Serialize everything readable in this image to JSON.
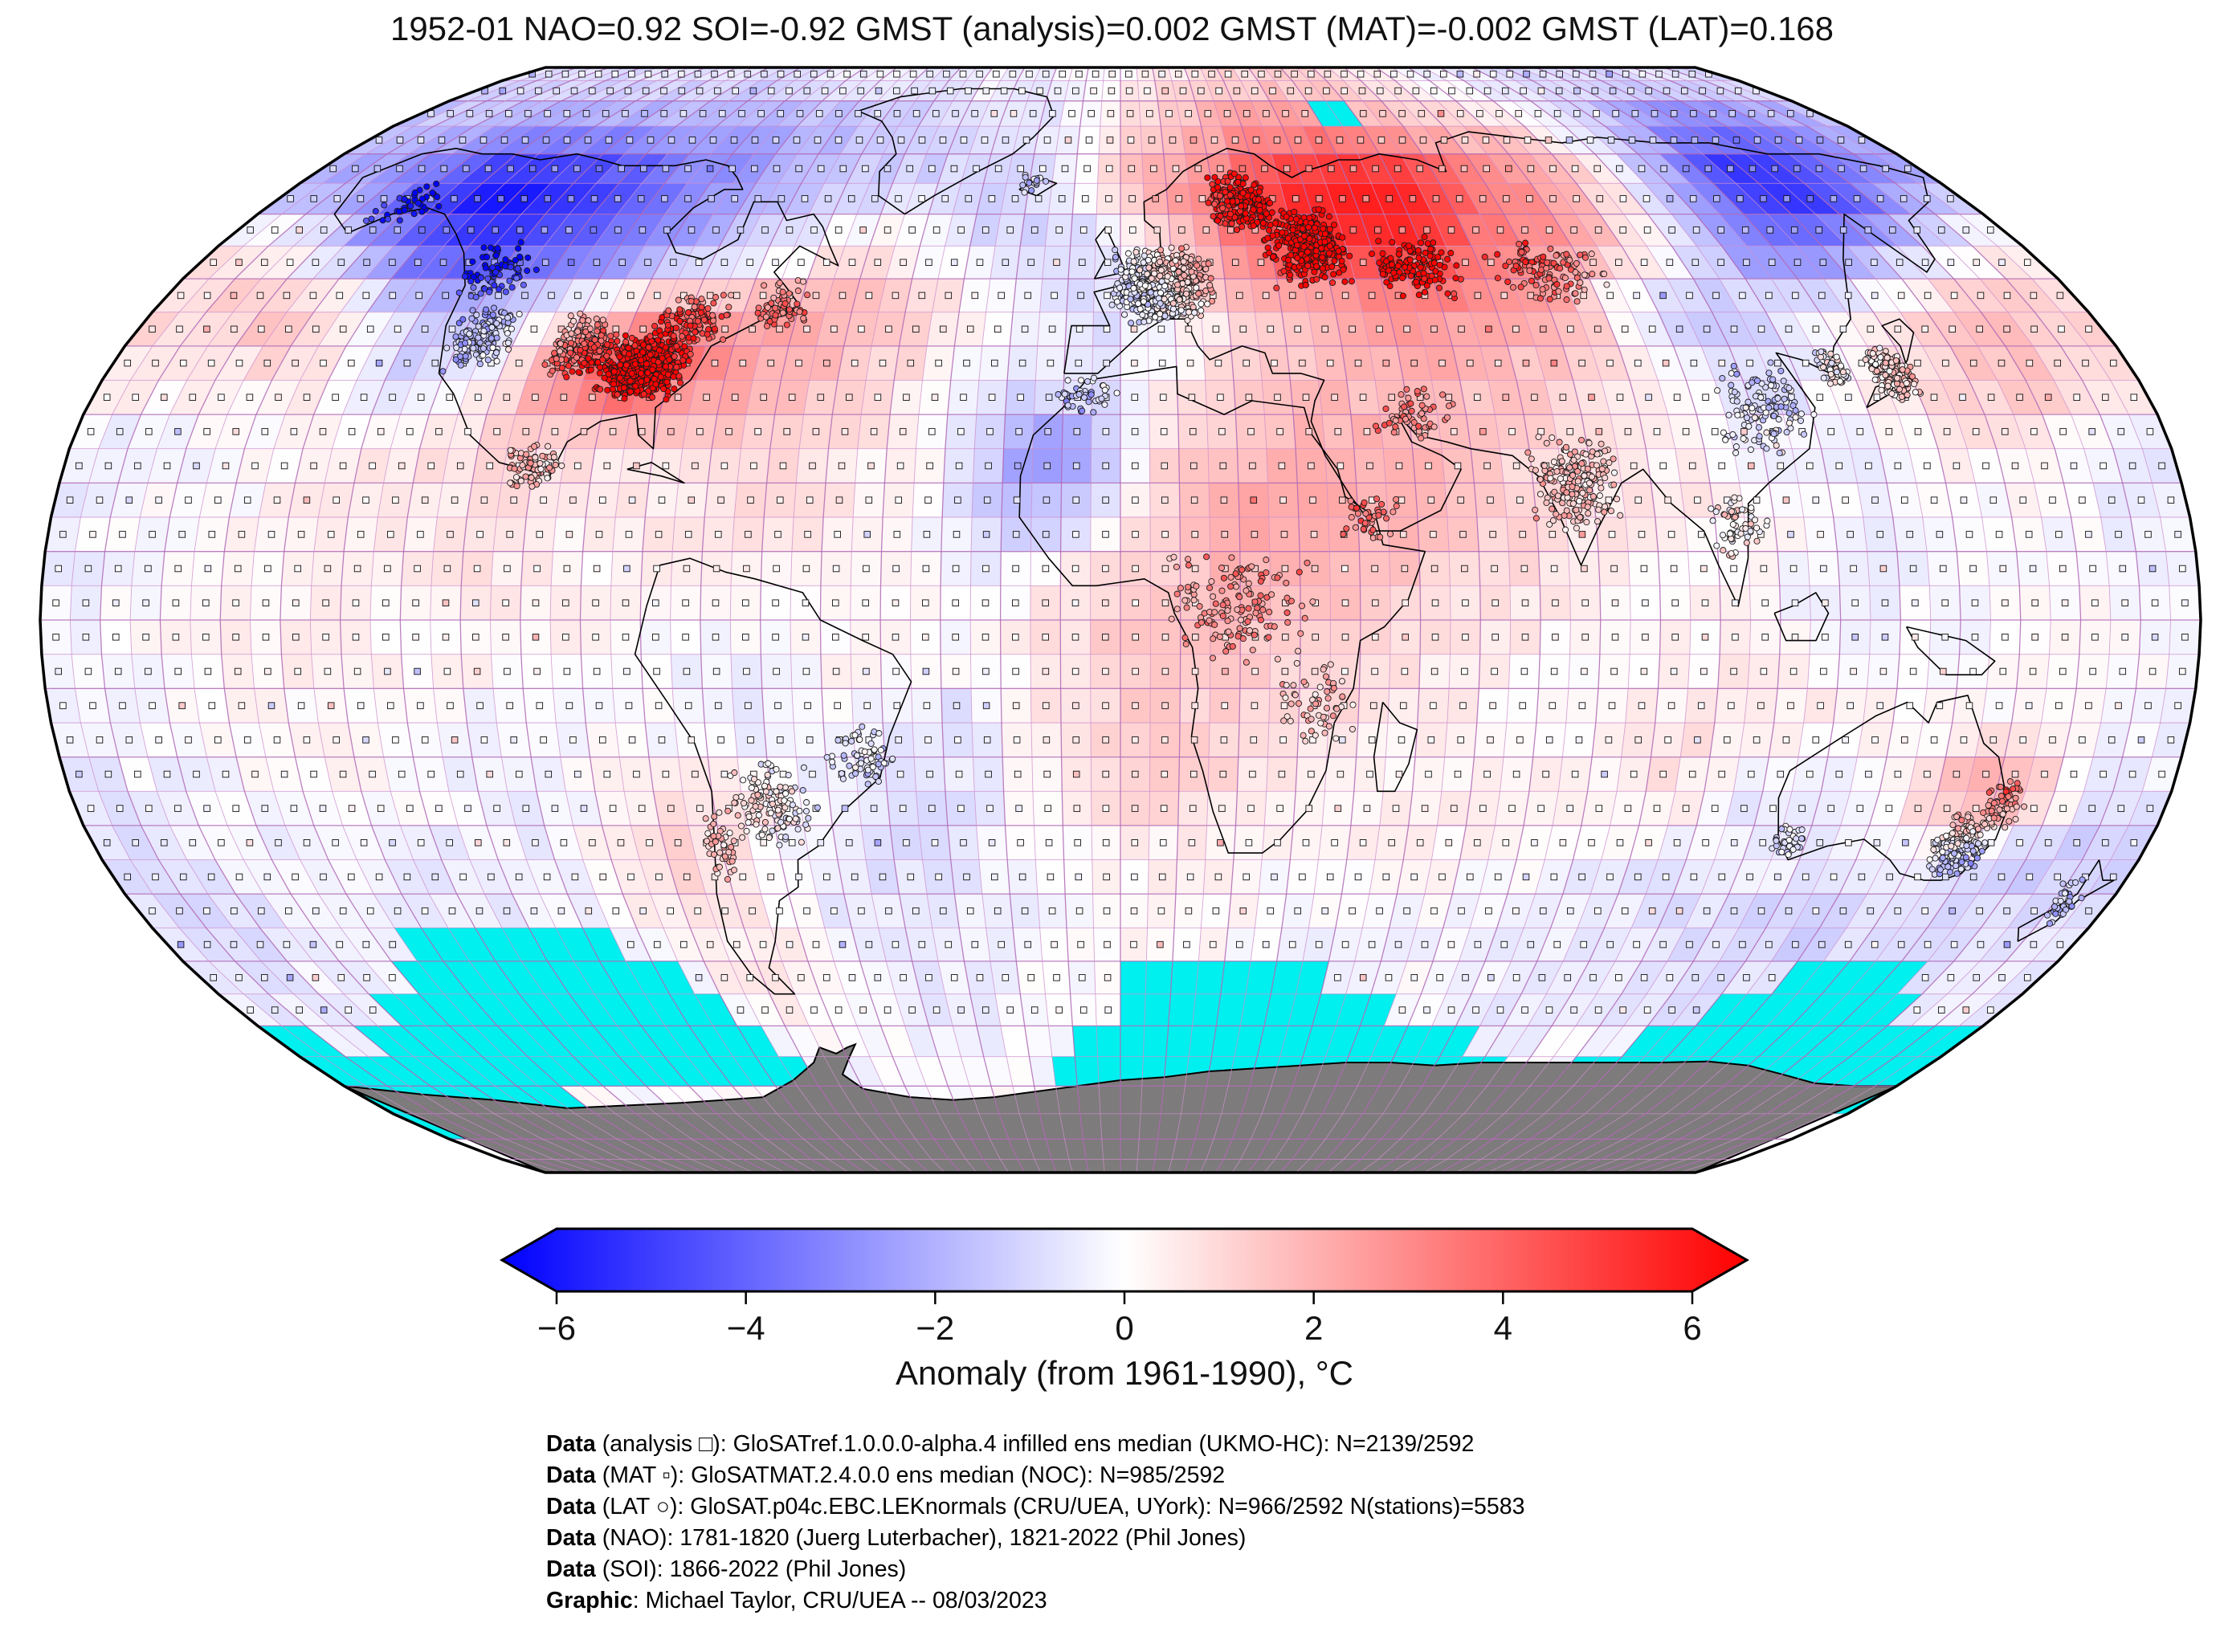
{
  "title": "1952-01 NAO=0.92 SOI=-0.92 GMST (analysis)=0.002 GMST (MAT)=-0.002 GMST (LAT)=0.168",
  "colorbar": {
    "label": "Anomaly (from 1961-1990), °C",
    "min": -6,
    "max": 6,
    "ticks": [
      {
        "v": -6,
        "label": "−6"
      },
      {
        "v": -4,
        "label": "−4"
      },
      {
        "v": -2,
        "label": "−2"
      },
      {
        "v": 0,
        "label": "0"
      },
      {
        "v": 2,
        "label": "2"
      },
      {
        "v": 4,
        "label": "4"
      },
      {
        "v": 6,
        "label": "6"
      }
    ],
    "left_color": "#0000ff",
    "mid_color": "#ffffff",
    "right_color": "#ff0000"
  },
  "credits": {
    "lines": [
      {
        "prefix": "Data",
        "text": " (analysis □): GloSATref.1.0.0.0-alpha.4 infilled ens median (UKMO-HC): N=2139/2592"
      },
      {
        "prefix": "Data",
        "text": " (MAT ▫): GloSATMAT.2.4.0.0 ens median (NOC): N=985/2592"
      },
      {
        "prefix": "Data",
        "text": " (LAT ○): GloSAT.p04c.EBC.LEKnormals (CRU/UEA, UYork): N=966/2592 N(stations)=5583"
      },
      {
        "prefix": "Data",
        "text": " (NAO): 1781-1820 (Juerg Luterbacher), 1821-2022 (Phil Jones)"
      },
      {
        "prefix": "Data",
        "text": " (SOI): 1866-2022 (Phil Jones)"
      },
      {
        "prefix": "Graphic",
        "text": ": Michael Taylor, CRU/UEA -- 08/03/2023"
      }
    ]
  },
  "chart_data": {
    "type": "heatmap",
    "projection": "robinson",
    "date": "1952-01",
    "indices": {
      "NAO": 0.92,
      "SOI": -0.92,
      "GMST_analysis": 0.002,
      "GMST_MAT": -0.002,
      "GMST_LAT": 0.168
    },
    "counts": {
      "analysis": "2139/2592",
      "mat": "985/2592",
      "lat": "966/2592",
      "stations": 5583
    },
    "anomaly_range_c": [
      -6,
      6
    ],
    "baseline": "1961-1990",
    "graticule_deg": 5,
    "colors": {
      "no_data": "#00efef",
      "antarctica": "#7d7b7b",
      "graticule": "#cd8fcd",
      "graticule_major": "#b06ab6",
      "coastline": "#000000",
      "outline": "#000000"
    },
    "grid": {
      "lat_step": 10,
      "lon_step": 10,
      "lat_start": 90,
      "lon_start": -180,
      "values": [
        [
          -0.8,
          -0.8,
          -0.8,
          -0.8,
          -0.8,
          -0.8,
          -0.8,
          -0.8,
          -0.8,
          -0.5,
          -0.5,
          -0.5,
          -0.5,
          -0.3,
          -0.2,
          -0.2,
          -0.2,
          0,
          0.3,
          0.5,
          0.8,
          1,
          1,
          1,
          0.8,
          0.5,
          0,
          -0.3,
          -0.5,
          -0.5,
          -0.8,
          -0.8,
          -0.8,
          -0.8,
          -0.8,
          -0.8
        ],
        [
          -1.5,
          -1.5,
          -1.8,
          -2,
          -2,
          -2,
          -2,
          -2,
          -2,
          -2,
          -1.8,
          -1.5,
          -1.2,
          -1.2,
          -1,
          -0.8,
          -0.5,
          0.3,
          1.2,
          1.5,
          2,
          2.5,
          2.5,
          2,
          1.8,
          1.5,
          1.2,
          0.8,
          0,
          -1,
          -1.5,
          -2.5,
          -3,
          -3,
          -2.5,
          -2
        ],
        [
          -2,
          -2.5,
          -3.5,
          -5,
          -5.5,
          -5.5,
          -4.5,
          -4,
          -3,
          -2.5,
          -1.8,
          -1.5,
          -1.2,
          -1,
          -0.8,
          -1,
          -0.5,
          0.5,
          2,
          2.5,
          3.5,
          4.5,
          5.5,
          5.5,
          5,
          3.5,
          3,
          2,
          1,
          -1,
          -2.5,
          -5,
          -5.5,
          -4.5,
          -3,
          -2
        ],
        [
          0.5,
          0.3,
          -1.5,
          -3,
          -4.5,
          -4.5,
          -4,
          -3.5,
          -3,
          -2,
          -1.2,
          -0.5,
          0.3,
          0.3,
          -0.5,
          -0.8,
          -1,
          -0.8,
          0.3,
          1.5,
          3.5,
          4.5,
          5,
          5,
          4,
          3,
          2.5,
          1.5,
          0.5,
          -1,
          -3,
          -3.5,
          -2.5,
          -1.5,
          -0.5,
          0.3
        ],
        [
          1,
          1.2,
          1.5,
          1,
          -0.8,
          -1.5,
          -1,
          0,
          1.5,
          2.5,
          2.2,
          2,
          1.8,
          1.5,
          1,
          0.3,
          -0.5,
          -0.8,
          -0.5,
          0.5,
          1.2,
          1.8,
          2,
          2.5,
          2.5,
          2,
          1.5,
          -0.5,
          -1.5,
          -1,
          -0.5,
          0,
          0.8,
          1.5,
          1.5,
          1.2
        ],
        [
          0.5,
          0.3,
          0.5,
          0.8,
          -0.3,
          -1,
          -0.5,
          1.5,
          3.5,
          4.5,
          3,
          2,
          1.5,
          1,
          0.5,
          -0.3,
          -0.5,
          -0.5,
          0,
          0.5,
          1,
          1.5,
          1.5,
          1.8,
          1.5,
          1.2,
          0.8,
          0.5,
          -0.5,
          -0.8,
          0,
          0.5,
          1,
          1.5,
          1.2,
          0.8
        ],
        [
          -0.5,
          -0.3,
          -0.3,
          0,
          0.3,
          0.5,
          0.8,
          1,
          0.8,
          0.5,
          0.8,
          1,
          0.8,
          0.5,
          0.3,
          -1,
          -2.5,
          -2,
          0.5,
          1.5,
          1.5,
          1.8,
          2,
          1.5,
          1,
          0.8,
          0.5,
          0.3,
          0,
          -0.3,
          -0.3,
          0,
          0.3,
          0.3,
          -0.3,
          -0.5
        ],
        [
          -0.3,
          0,
          0,
          0.2,
          0.3,
          0.5,
          0.5,
          0.8,
          0.5,
          0.3,
          0.5,
          0.8,
          0.5,
          0.3,
          0,
          -0.8,
          -1.5,
          -0.8,
          0.8,
          1.8,
          2,
          2.2,
          1.8,
          1.5,
          1.2,
          0.8,
          0.5,
          0.5,
          0.3,
          0,
          -0.3,
          -0.3,
          0,
          0,
          -0.3,
          -0.3
        ],
        [
          -0.3,
          -0.2,
          0,
          0.2,
          0.3,
          0.3,
          0.3,
          0.5,
          0.3,
          0.2,
          0.3,
          0.5,
          0.3,
          0.2,
          0,
          -0.3,
          0.3,
          0.8,
          1.2,
          1.5,
          1.8,
          1.5,
          1.2,
          1,
          0.8,
          0.5,
          0.3,
          0.3,
          0,
          -0.2,
          -0.3,
          -0.2,
          0,
          0.2,
          0,
          -0.2
        ],
        [
          -0.2,
          0,
          0.2,
          0.3,
          0.3,
          0.2,
          0.2,
          0.3,
          0.2,
          0,
          -0.2,
          -0.3,
          0,
          0.3,
          0.2,
          0,
          0.5,
          1,
          1.5,
          1.5,
          1.2,
          1,
          0.8,
          0.5,
          0.3,
          0.2,
          0.2,
          0.3,
          0.2,
          0,
          -0.2,
          -0.2,
          0,
          0.2,
          0.2,
          0
        ],
        [
          -0.3,
          -0.2,
          0,
          0.2,
          0.2,
          0,
          -0.2,
          -0.3,
          -0.2,
          0,
          -0.3,
          -0.5,
          -0.5,
          -0.3,
          -0.5,
          -0.8,
          0.3,
          0.8,
          1.2,
          1,
          0.8,
          0.8,
          0.5,
          0.3,
          0.2,
          0,
          0.2,
          0.5,
          0.8,
          0.5,
          0.3,
          0.2,
          0,
          -0.2,
          -0.2,
          -0.3
        ],
        [
          -0.5,
          -0.3,
          -0.2,
          0,
          0.2,
          0,
          -0.2,
          -0.3,
          -0.3,
          0.3,
          0.8,
          0.5,
          0,
          -0.5,
          -0.8,
          -0.5,
          0.3,
          0.8,
          1,
          0.8,
          0.5,
          0.3,
          0.3,
          0.5,
          0.3,
          0.2,
          0.3,
          0.8,
          -0.3,
          -0.5,
          -0.5,
          0.5,
          2.5,
          2,
          -0.3,
          -0.5
        ],
        [
          -0.8,
          -0.5,
          -0.3,
          -0.3,
          -0.2,
          -0.3,
          -0.5,
          -0.5,
          0,
          0.8,
          1,
          0.5,
          -0.3,
          -0.8,
          -0.8,
          -0.5,
          -0.3,
          0,
          0.3,
          0.3,
          0.2,
          0,
          0.2,
          0.3,
          0.2,
          0,
          -0.3,
          -0.5,
          -0.5,
          -0.3,
          -0.3,
          0,
          -0.8,
          -1.2,
          -1.2,
          -1
        ],
        [
          -0.8,
          -0.8,
          -0.5,
          -0.5,
          -0.5,
          -0.5,
          -0.5,
          -0.3,
          -0.3,
          0.3,
          0.5,
          0.3,
          -0.3,
          -0.5,
          -0.5,
          -0.3,
          -0.2,
          0,
          0.2,
          0.2,
          0,
          -0.2,
          -0.3,
          -0.3,
          -0.2,
          -0.3,
          -0.5,
          -0.5,
          -0.8,
          -1,
          -1.2,
          -1,
          -0.8,
          -0.8,
          -0.8,
          -0.8
        ],
        [
          -0.5,
          -0.5,
          -0.3,
          -0.2,
          -0.2,
          -0.2,
          -0.2,
          -0.2,
          -0.2,
          -0.3,
          0.3,
          0.5,
          0.3,
          -0.3,
          -0.5,
          -0.3,
          -0.2,
          0,
          0.2,
          0,
          -0.2,
          -0.3,
          -0.2,
          0,
          -0.3,
          -0.5,
          -0.5,
          -0.3,
          -0.5,
          -0.8,
          -0.5,
          -0.5,
          -0.5,
          -0.5,
          -0.5,
          -0.5
        ],
        [
          -0.2,
          -0.2,
          -0.2,
          -0.2,
          -0.2,
          -0.2,
          -0.2,
          -0.2,
          -0.2,
          -0.2,
          -0.2,
          -0.2,
          -0.2,
          -0.2,
          -0.2,
          -0.2,
          -0.2,
          -0.2,
          -0.2,
          -0.2,
          -0.2,
          -0.2,
          -0.2,
          -0.2,
          -0.2,
          -0.2,
          -0.2,
          -0.2,
          -0.2,
          -0.2,
          -0.2,
          -0.2,
          -0.2,
          -0.2,
          -0.2,
          -0.2
        ],
        [
          0,
          0,
          0,
          0,
          0,
          0,
          0,
          0,
          0,
          0,
          0,
          0,
          0,
          0,
          0,
          0,
          0,
          0,
          0,
          0,
          0,
          0,
          0,
          0,
          0,
          0,
          0,
          0,
          0,
          0,
          0,
          0,
          0,
          0,
          0,
          0
        ],
        [
          0,
          0,
          0,
          0,
          0,
          0,
          0,
          0,
          0,
          0,
          0,
          0,
          0,
          0,
          0,
          0,
          0,
          0,
          0,
          0,
          0,
          0,
          0,
          0,
          0,
          0,
          0,
          0,
          0,
          0,
          0,
          0,
          0,
          0,
          0,
          0
        ]
      ]
    },
    "no_data_cells_5deg": [
      [
        2,
        46,
        47
      ],
      [
        27,
        9,
        16
      ],
      [
        28,
        8,
        18
      ],
      [
        28,
        36,
        43
      ],
      [
        28,
        62,
        66
      ],
      [
        29,
        6,
        19
      ],
      [
        29,
        36,
        46
      ],
      [
        29,
        60,
        67
      ],
      [
        30,
        0,
        1
      ],
      [
        30,
        4,
        20
      ],
      [
        30,
        34,
        50
      ],
      [
        30,
        58,
        71
      ],
      [
        31,
        0,
        21
      ],
      [
        31,
        33,
        52
      ],
      [
        31,
        56,
        71
      ],
      [
        32,
        0,
        9
      ],
      [
        32,
        60,
        71
      ],
      [
        33,
        0,
        7
      ]
    ],
    "station_clusters": [
      [
        -85,
        37,
        600,
        8,
        5
      ],
      [
        -97,
        40,
        220,
        6,
        5
      ],
      [
        -116,
        41,
        150,
        6,
        5
      ],
      [
        -121,
        51,
        80,
        8,
        5
      ],
      [
        -79,
        44,
        120,
        7,
        4
      ],
      [
        -63,
        46,
        70,
        6,
        4
      ],
      [
        -100,
        22,
        80,
        5,
        4
      ],
      [
        -150,
        62,
        40,
        7,
        4
      ],
      [
        -19,
        65,
        22,
        3,
        2
      ],
      [
        8,
        49,
        750,
        10,
        6
      ],
      [
        25,
        62,
        240,
        7,
        5
      ],
      [
        37,
        55,
        320,
        9,
        7
      ],
      [
        57,
        52,
        130,
        9,
        5
      ],
      [
        82,
        51,
        110,
        12,
        5
      ],
      [
        112,
        31,
        130,
        9,
        7
      ],
      [
        137,
        36,
        230,
        4,
        4
      ],
      [
        127,
        37,
        60,
        3,
        3
      ],
      [
        77,
        20,
        210,
        8,
        7
      ],
      [
        103,
        14,
        60,
        6,
        5
      ],
      [
        -60,
        -27,
        140,
        8,
        7
      ],
      [
        -70,
        -33,
        45,
        3,
        6
      ],
      [
        -44,
        -20,
        70,
        6,
        5
      ],
      [
        20,
        2,
        150,
        13,
        9
      ],
      [
        33,
        -12,
        60,
        7,
        7
      ],
      [
        -6,
        33,
        45,
        6,
        3
      ],
      [
        147,
        -33,
        190,
        5,
        5
      ],
      [
        117,
        -32,
        45,
        3,
        3
      ],
      [
        172,
        -41,
        40,
        3,
        4
      ],
      [
        152,
        -27,
        60,
        4,
        4
      ],
      [
        42,
        15,
        40,
        5,
        4
      ],
      [
        51,
        30,
        60,
        7,
        4
      ]
    ]
  }
}
